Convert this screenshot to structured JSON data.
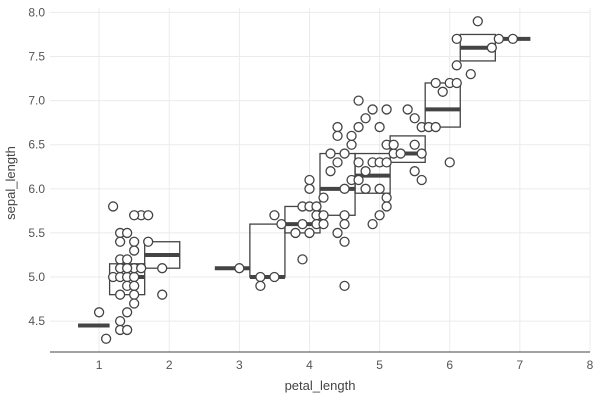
{
  "chart_data": {
    "type": "scatter",
    "xlabel": "petal_length",
    "ylabel": "sepal_length",
    "xlim": [
      0.3,
      8
    ],
    "ylim": [
      4.15,
      8.05
    ],
    "x_ticks": [
      "1",
      "2",
      "3",
      "4",
      "5",
      "6",
      "7",
      "8"
    ],
    "y_ticks": [
      "4.5",
      "5.0",
      "5.5",
      "6.0",
      "6.5",
      "7.0",
      "7.5",
      "8.0"
    ],
    "grid": true,
    "legend": "none",
    "colors": {
      "stroke": "#444444",
      "grid": "#ebebeb",
      "point_fill": "#ffffff"
    },
    "boxes": [
      {
        "x_from": 0.7,
        "x_to": 1.15,
        "q1": 4.45,
        "median": 4.45,
        "q3": 4.45
      },
      {
        "x_from": 1.15,
        "x_to": 1.65,
        "q1": 4.8,
        "median": 5.0,
        "q3": 5.15
      },
      {
        "x_from": 1.65,
        "x_to": 2.15,
        "q1": 5.1,
        "median": 5.25,
        "q3": 5.4
      },
      {
        "x_from": 2.65,
        "x_to": 3.15,
        "q1": 5.1,
        "median": 5.1,
        "q3": 5.1
      },
      {
        "x_from": 3.15,
        "x_to": 3.65,
        "q1": 5.0,
        "median": 5.0,
        "q3": 5.6
      },
      {
        "x_from": 3.65,
        "x_to": 4.15,
        "q1": 5.5,
        "median": 5.6,
        "q3": 5.8
      },
      {
        "x_from": 4.15,
        "x_to": 4.65,
        "q1": 5.7,
        "median": 6.0,
        "q3": 6.4
      },
      {
        "x_from": 4.65,
        "x_to": 5.15,
        "q1": 5.95,
        "median": 6.15,
        "q3": 6.4
      },
      {
        "x_from": 5.15,
        "x_to": 5.65,
        "q1": 6.3,
        "median": 6.4,
        "q3": 6.6
      },
      {
        "x_from": 5.65,
        "x_to": 6.15,
        "q1": 6.7,
        "median": 6.9,
        "q3": 7.2
      },
      {
        "x_from": 6.15,
        "x_to": 6.65,
        "q1": 7.45,
        "median": 7.6,
        "q3": 7.75
      },
      {
        "x_from": 6.65,
        "x_to": 7.15,
        "q1": 7.7,
        "median": 7.7,
        "q3": 7.7
      }
    ],
    "points": [
      [
        1.0,
        4.6
      ],
      [
        1.1,
        4.3
      ],
      [
        1.2,
        5.8
      ],
      [
        1.3,
        5.5
      ],
      [
        1.4,
        5.5
      ],
      [
        1.3,
        5.4
      ],
      [
        1.5,
        5.4
      ],
      [
        1.3,
        5.2
      ],
      [
        1.5,
        5.3
      ],
      [
        1.4,
        5.2
      ],
      [
        1.2,
        5.0
      ],
      [
        1.3,
        5.0
      ],
      [
        1.4,
        5.0
      ],
      [
        1.5,
        5.0
      ],
      [
        1.3,
        5.1
      ],
      [
        1.5,
        5.1
      ],
      [
        1.4,
        4.9
      ],
      [
        1.5,
        4.9
      ],
      [
        1.3,
        4.8
      ],
      [
        1.5,
        4.8
      ],
      [
        1.4,
        4.6
      ],
      [
        1.3,
        4.5
      ],
      [
        1.3,
        4.4
      ],
      [
        1.4,
        4.4
      ],
      [
        1.5,
        4.7
      ],
      [
        1.4,
        5.1
      ],
      [
        1.6,
        5.7
      ],
      [
        1.5,
        5.7
      ],
      [
        1.7,
        5.7
      ],
      [
        1.6,
        5.1
      ],
      [
        1.7,
        5.4
      ],
      [
        1.9,
        5.1
      ],
      [
        1.9,
        4.8
      ],
      [
        3.0,
        5.1
      ],
      [
        3.3,
        5.0
      ],
      [
        3.3,
        4.9
      ],
      [
        3.5,
        5.0
      ],
      [
        3.5,
        5.7
      ],
      [
        3.6,
        5.6
      ],
      [
        3.8,
        5.5
      ],
      [
        3.9,
        5.6
      ],
      [
        3.9,
        5.2
      ],
      [
        3.9,
        5.8
      ],
      [
        4.0,
        5.8
      ],
      [
        4.0,
        6.0
      ],
      [
        4.0,
        6.1
      ],
      [
        4.0,
        5.5
      ],
      [
        4.1,
        5.7
      ],
      [
        4.1,
        5.8
      ],
      [
        4.1,
        5.6
      ],
      [
        4.2,
        5.7
      ],
      [
        4.2,
        5.9
      ],
      [
        4.2,
        5.6
      ],
      [
        4.3,
        6.2
      ],
      [
        4.3,
        6.4
      ],
      [
        4.4,
        6.7
      ],
      [
        4.4,
        6.6
      ],
      [
        4.4,
        6.3
      ],
      [
        4.4,
        5.5
      ],
      [
        4.5,
        6.4
      ],
      [
        4.5,
        6.0
      ],
      [
        4.5,
        5.7
      ],
      [
        4.5,
        5.6
      ],
      [
        4.5,
        5.4
      ],
      [
        4.5,
        4.9
      ],
      [
        4.6,
        6.5
      ],
      [
        4.6,
        6.6
      ],
      [
        4.6,
        6.1
      ],
      [
        4.7,
        7.0
      ],
      [
        4.7,
        6.7
      ],
      [
        4.7,
        6.3
      ],
      [
        4.7,
        6.1
      ],
      [
        4.8,
        6.8
      ],
      [
        4.8,
        6.2
      ],
      [
        4.8,
        6.0
      ],
      [
        4.9,
        6.9
      ],
      [
        4.9,
        6.3
      ],
      [
        4.9,
        5.6
      ],
      [
        5.0,
        6.7
      ],
      [
        5.0,
        6.3
      ],
      [
        5.0,
        6.0
      ],
      [
        5.0,
        5.7
      ],
      [
        5.1,
        6.9
      ],
      [
        5.1,
        6.5
      ],
      [
        5.1,
        6.3
      ],
      [
        5.1,
        5.9
      ],
      [
        5.1,
        5.8
      ],
      [
        5.2,
        6.4
      ],
      [
        5.2,
        6.5
      ],
      [
        5.3,
        6.4
      ],
      [
        5.4,
        6.9
      ],
      [
        5.5,
        6.8
      ],
      [
        5.5,
        6.5
      ],
      [
        5.5,
        6.2
      ],
      [
        5.6,
        6.7
      ],
      [
        5.6,
        6.4
      ],
      [
        5.6,
        6.1
      ],
      [
        5.7,
        6.7
      ],
      [
        5.8,
        6.7
      ],
      [
        5.8,
        7.2
      ],
      [
        5.9,
        7.1
      ],
      [
        6.0,
        7.2
      ],
      [
        6.0,
        6.3
      ],
      [
        6.1,
        7.2
      ],
      [
        6.1,
        7.4
      ],
      [
        6.1,
        7.7
      ],
      [
        6.3,
        7.3
      ],
      [
        6.4,
        7.9
      ],
      [
        6.6,
        7.6
      ],
      [
        6.7,
        7.7
      ],
      [
        6.9,
        7.7
      ]
    ]
  }
}
